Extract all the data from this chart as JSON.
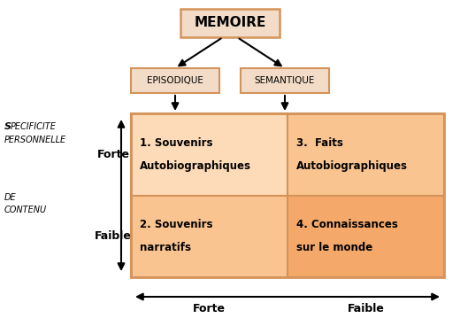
{
  "memoire_label": "MEMOIRE",
  "episodique_label": "EPISODIQUE",
  "semantique_label": "SEMANTIQUE",
  "cell1_line1": "1. Souvenirs",
  "cell1_line2": "Autobiographiques",
  "cell2_line1": "2. Souvenirs",
  "cell2_line2": "narratifs",
  "cell3_line1": "3.  Faits",
  "cell3_line2": "Autobiographiques",
  "cell4_line1": "4. Connaissances",
  "cell4_line2": "sur le monde",
  "left_label1": "S",
  "left_label1b": "PECIFICITE",
  "left_label2": "PERSONNELLE",
  "left_label3": "DE",
  "left_label4": "CONTENU",
  "forte_label": "Forte",
  "faible_label": "Faible",
  "bottom_forte": "Forte",
  "bottom_faible": "Faible",
  "mem_fill": "#F2DCC8",
  "ep_fill": "#F2DCC8",
  "border_color": "#D4935A",
  "cell1_fill": "#FDDBB8",
  "cell2_fill": "#F9C490",
  "cell3_fill": "#F9C490",
  "cell4_fill": "#F4A86A"
}
